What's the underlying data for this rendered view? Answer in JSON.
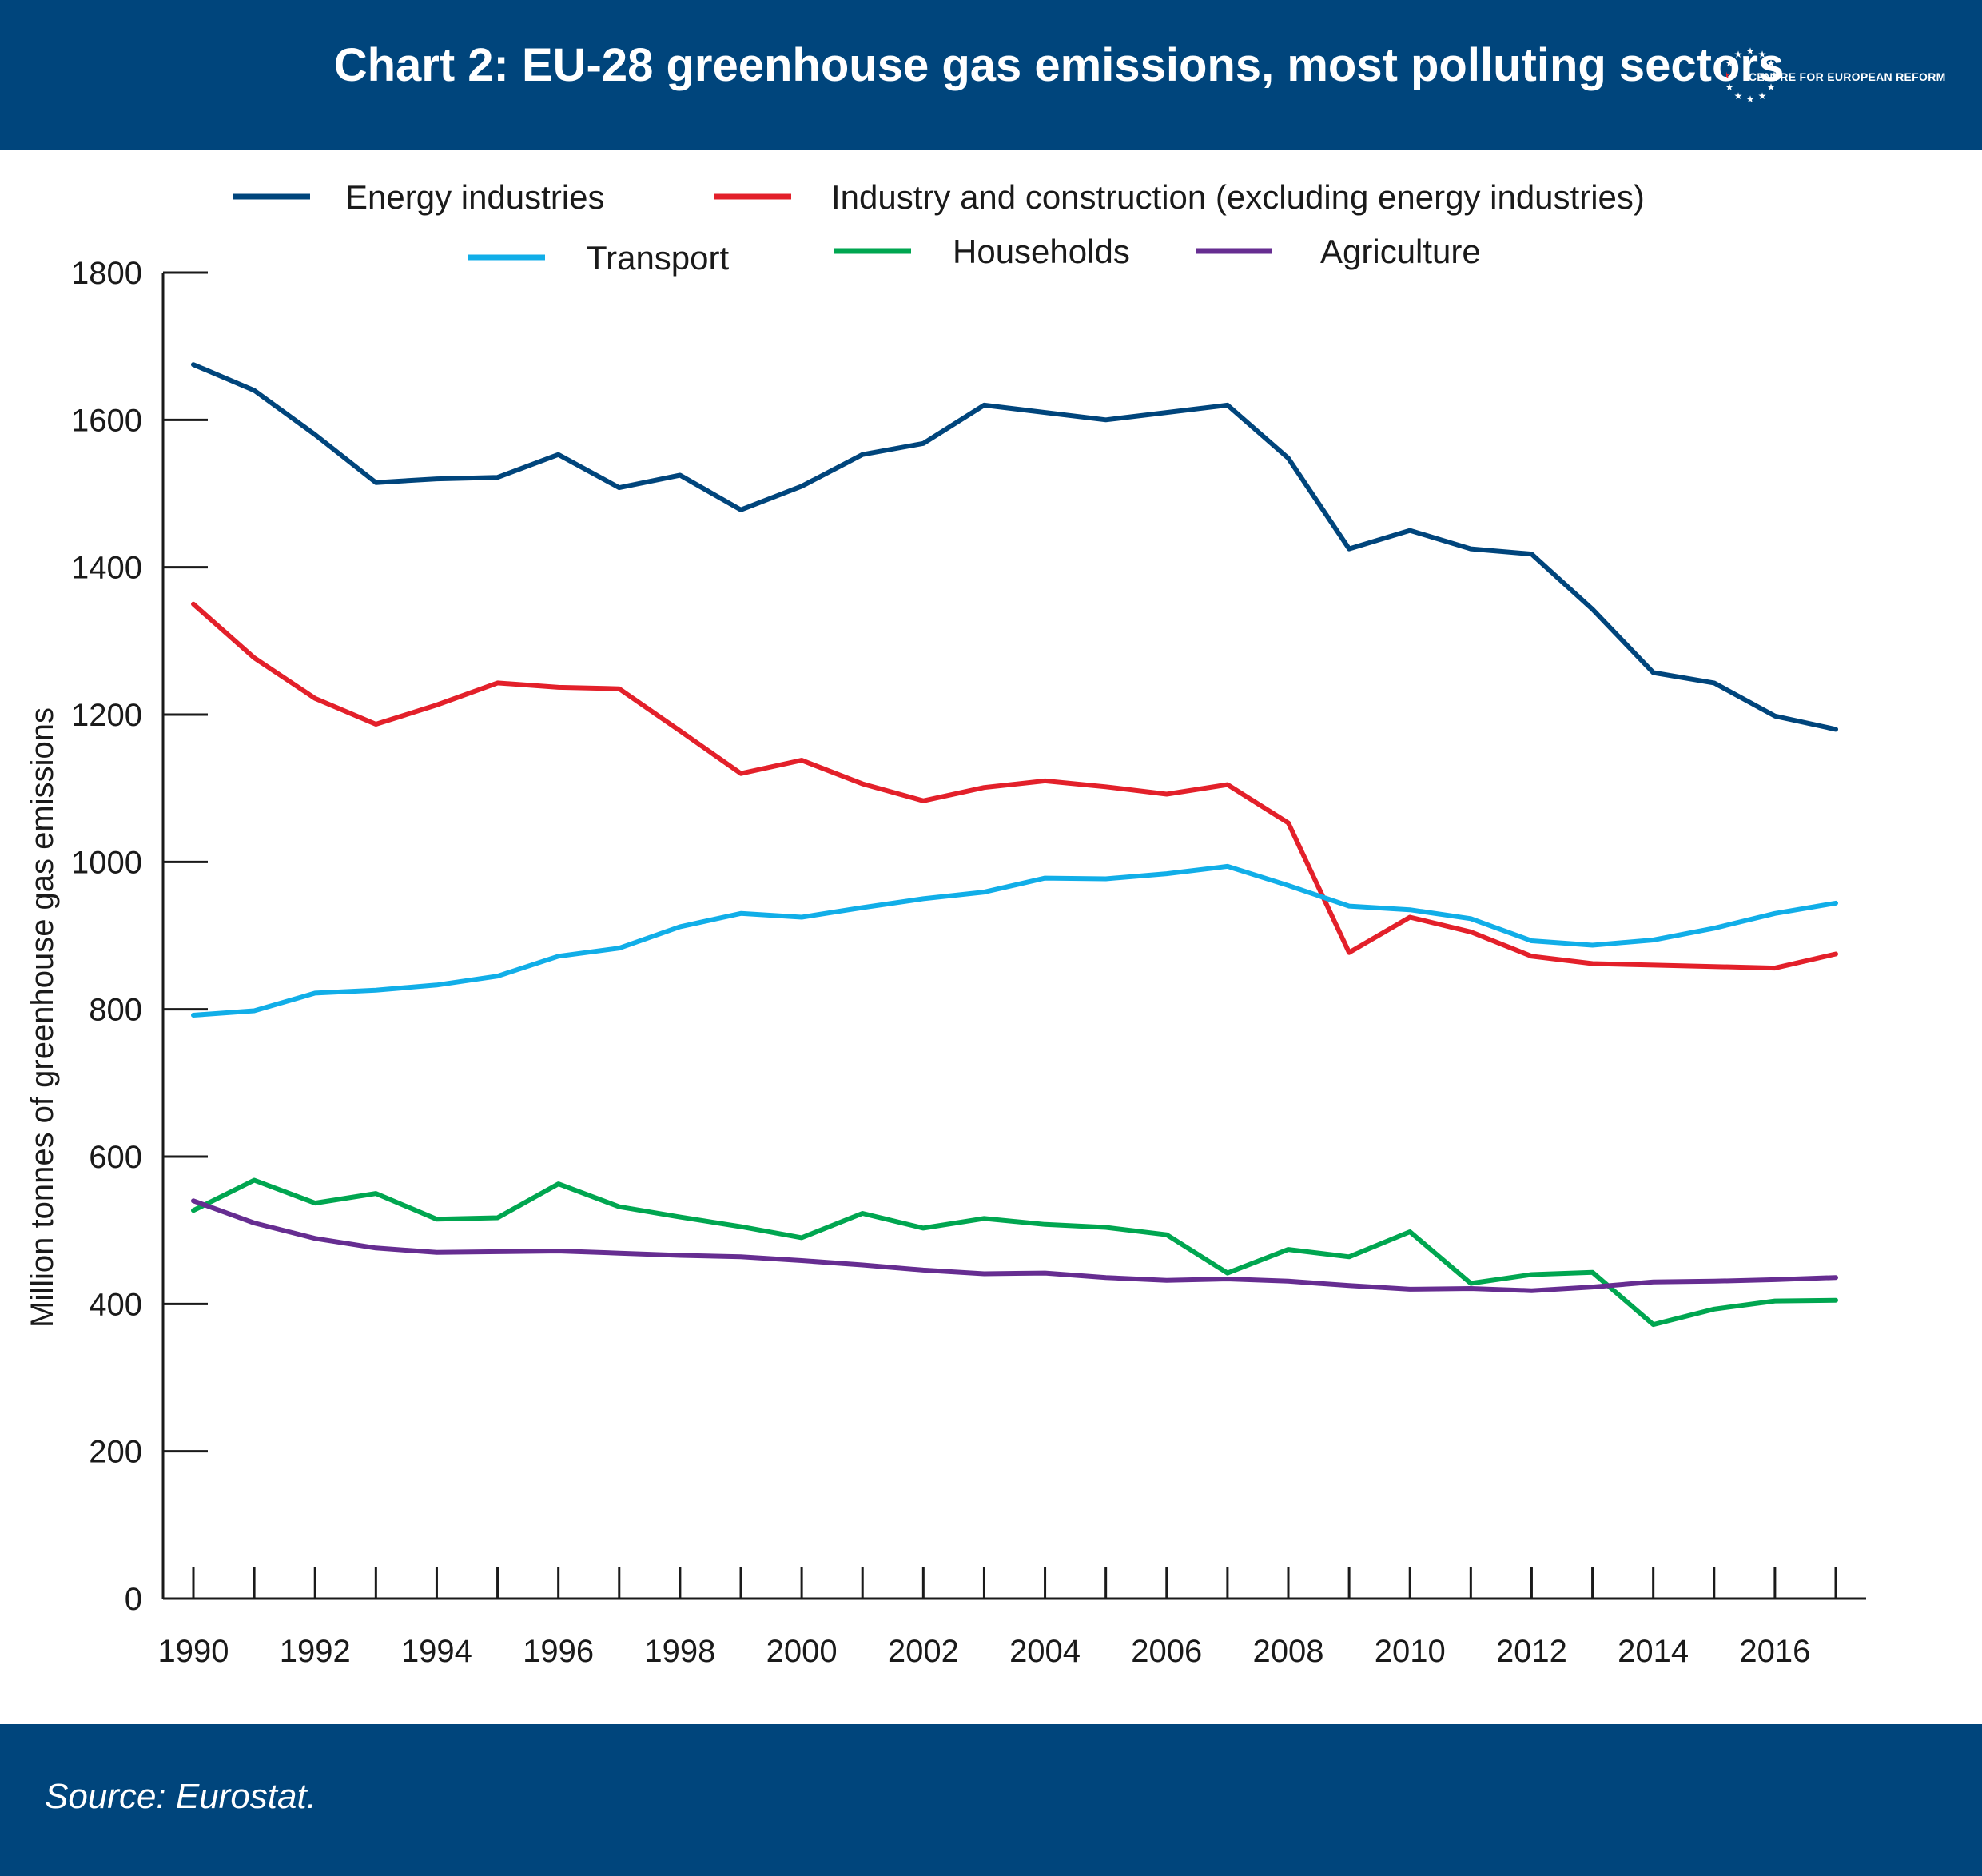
{
  "header": {
    "title": "Chart 2: EU-28 greenhouse gas emissions, most polluting sectors",
    "logo_text": "CENTRE FOR EUROPEAN REFORM"
  },
  "footer": {
    "source": "Source: Eurostat."
  },
  "colors": {
    "header_bg": "#00457c",
    "energy": "#00457c",
    "industry": "#e3202a",
    "transport": "#11aee8",
    "households": "#00a650",
    "agriculture": "#662d91"
  },
  "chart_data": {
    "type": "line",
    "title": "Chart 2: EU-28 greenhouse gas emissions, most polluting sectors",
    "xlabel": "",
    "ylabel": "Million tonnes of greenhouse gas emissions",
    "ylim": [
      0,
      1800
    ],
    "xlim": [
      1990,
      2017
    ],
    "y_ticks": [
      0,
      200,
      400,
      600,
      800,
      1000,
      1200,
      1400,
      1600,
      1800
    ],
    "x_tick_labels": [
      "1990",
      "1992",
      "1994",
      "1996",
      "1998",
      "2000",
      "2002",
      "2004",
      "2006",
      "2008",
      "2010",
      "2012",
      "2014",
      "2016"
    ],
    "grid": false,
    "legend_position": "top",
    "x": [
      1990,
      1991,
      1992,
      1993,
      1994,
      1995,
      1996,
      1997,
      1998,
      1999,
      2000,
      2001,
      2002,
      2003,
      2004,
      2005,
      2006,
      2007,
      2008,
      2009,
      2010,
      2011,
      2012,
      2013,
      2014,
      2015,
      2016,
      2017
    ],
    "series": [
      {
        "name": "Energy industries",
        "color": "#00457c",
        "values": [
          1675,
          1640,
          1580,
          1515,
          1520,
          1522,
          1553,
          1508,
          1525,
          1478,
          1510,
          1553,
          1568,
          1620,
          1610,
          1600,
          1610,
          1620,
          1548,
          1425,
          1450,
          1425,
          1418,
          1343,
          1257,
          1243,
          1198,
          1180
        ]
      },
      {
        "name": "Industry and construction (excluding energy industries)",
        "color": "#e3202a",
        "values": [
          1350,
          1277,
          1222,
          1187,
          1213,
          1243,
          1237,
          1235,
          1178,
          1120,
          1138,
          1106,
          1083,
          1101,
          1110,
          1102,
          1092,
          1105,
          1053,
          877,
          925,
          905,
          872,
          862,
          860,
          858,
          856,
          875
        ]
      },
      {
        "name": "Transport",
        "color": "#11aee8",
        "values": [
          792,
          798,
          822,
          826,
          833,
          845,
          872,
          883,
          912,
          930,
          925,
          938,
          950,
          959,
          978,
          977,
          984,
          994,
          968,
          940,
          935,
          923,
          893,
          887,
          894,
          910,
          930,
          944
        ]
      },
      {
        "name": "Households",
        "color": "#00a650",
        "values": [
          527,
          568,
          537,
          550,
          515,
          517,
          563,
          532,
          518,
          505,
          490,
          523,
          503,
          516,
          508,
          504,
          494,
          442,
          474,
          464,
          498,
          428,
          440,
          443,
          372,
          393,
          404,
          405
        ]
      },
      {
        "name": "Agriculture",
        "color": "#662d91",
        "values": [
          540,
          510,
          489,
          476,
          470,
          471,
          472,
          469,
          466,
          464,
          459,
          453,
          446,
          441,
          442,
          436,
          432,
          434,
          431,
          425,
          420,
          421,
          418,
          423,
          430,
          431,
          433,
          436
        ]
      }
    ]
  }
}
